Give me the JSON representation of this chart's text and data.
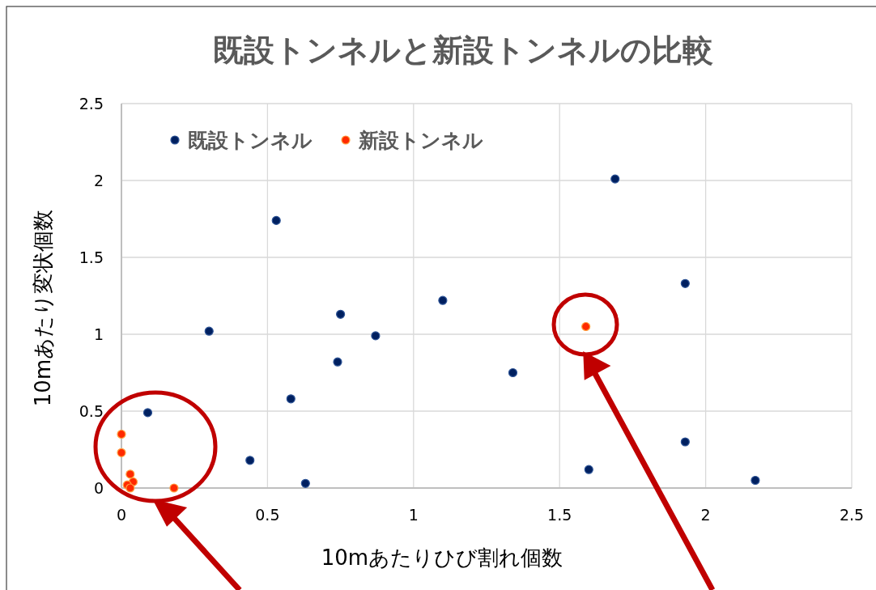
{
  "chart_data": {
    "type": "scatter",
    "title": "既設トンネルと新設トンネルの比較",
    "xlabel": "10mあたりひび割れ個数",
    "ylabel": "10mあたり変状個数",
    "xlim": [
      0,
      2.5
    ],
    "ylim": [
      0,
      2.5
    ],
    "xticks": [
      0,
      0.5,
      1,
      1.5,
      2,
      2.5
    ],
    "yticks": [
      0,
      0.5,
      1,
      1.5,
      2,
      2.5
    ],
    "grid": true,
    "legend": "top left",
    "marker": "circle",
    "series": [
      {
        "name": "既設トンネル",
        "color": "#002060",
        "x": [
          0.09,
          0.3,
          0.53,
          0.44,
          0.58,
          0.63,
          0.74,
          0.75,
          0.87,
          1.1,
          1.34,
          1.6,
          1.69,
          1.93,
          1.93,
          2.17
        ],
        "values": [
          0.49,
          1.02,
          1.74,
          0.18,
          0.58,
          0.03,
          0.82,
          1.13,
          0.99,
          1.22,
          0.75,
          0.12,
          2.01,
          1.33,
          0.3,
          0.05
        ]
      },
      {
        "name": "新設トンネル",
        "color": "#ff2a00",
        "x": [
          0,
          0,
          0.03,
          0.04,
          0.02,
          0.03,
          0.18,
          1.59
        ],
        "values": [
          0.35,
          0.23,
          0.09,
          0.04,
          0.02,
          0,
          0,
          1.05
        ]
      }
    ]
  }
}
